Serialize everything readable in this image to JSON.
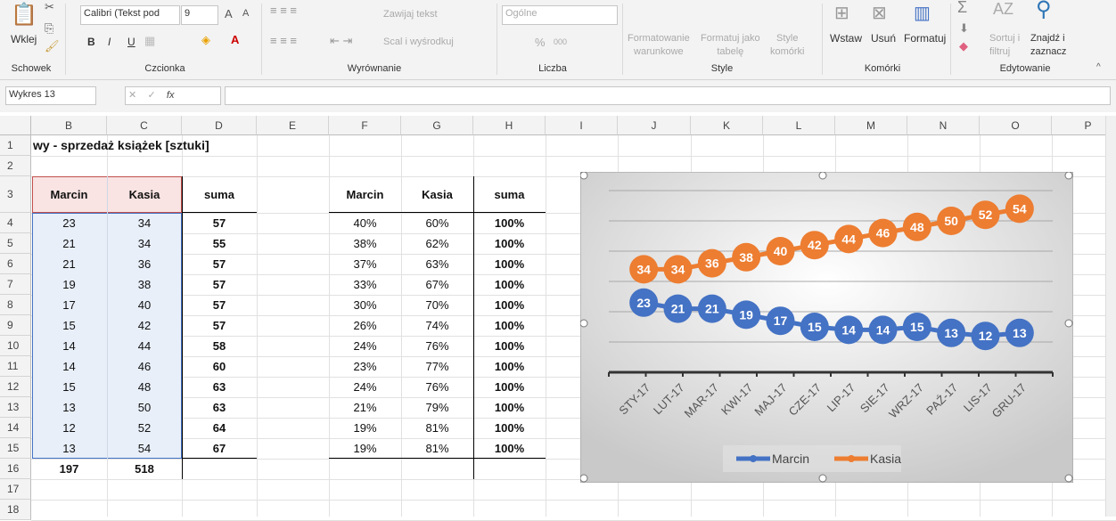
{
  "ribbon": {
    "clipboard": {
      "paste": "Wklej",
      "group": "Schowek"
    },
    "font": {
      "name": "Calibri (Tekst pod",
      "size": "9",
      "bold": "B",
      "italic": "I",
      "underline": "U",
      "group": "Czcionka"
    },
    "alignment": {
      "wrap": "Zawijaj tekst",
      "merge": "Scal i wyśrodkuj",
      "group": "Wyrównanie"
    },
    "number": {
      "format": "Ogólne",
      "percent": "%",
      "thousands": "000",
      "group": "Liczba"
    },
    "styles": {
      "conditional": [
        "Formatowanie",
        "warunkowe"
      ],
      "table": [
        "Formatuj jako",
        "tabelę"
      ],
      "cell": [
        "Style",
        "komórki"
      ],
      "group": "Style"
    },
    "cells": {
      "insert": "Wstaw",
      "delete": "Usuń",
      "format": "Formatuj",
      "group": "Komórki"
    },
    "editing": {
      "sort": [
        "Sortuj i",
        "filtruj"
      ],
      "find": [
        "Znajdź i",
        "zaznacz"
      ],
      "group": "Edytowanie"
    }
  },
  "formula_bar": {
    "name_box": "Wykres 13",
    "fx": "fx",
    "value": ""
  },
  "columns": [
    "B",
    "C",
    "D",
    "E",
    "F",
    "G",
    "H",
    "I",
    "J",
    "K",
    "L",
    "M",
    "N",
    "O",
    "P"
  ],
  "rows": [
    "1",
    "2",
    "3",
    "4",
    "5",
    "6",
    "7",
    "8",
    "9",
    "10",
    "11",
    "12",
    "13",
    "14",
    "15",
    "16",
    "17",
    "18"
  ],
  "sheet": {
    "title": "wy - sprzedaż książek [sztuki]",
    "headers": {
      "b": "Marcin",
      "c": "Kasia",
      "d": "suma",
      "f": "Marcin",
      "g": "Kasia",
      "h": "suma"
    },
    "data": [
      [
        "23",
        "34",
        "57",
        "40%",
        "60%",
        "100%"
      ],
      [
        "21",
        "34",
        "55",
        "38%",
        "62%",
        "100%"
      ],
      [
        "21",
        "36",
        "57",
        "37%",
        "63%",
        "100%"
      ],
      [
        "19",
        "38",
        "57",
        "33%",
        "67%",
        "100%"
      ],
      [
        "17",
        "40",
        "57",
        "30%",
        "70%",
        "100%"
      ],
      [
        "15",
        "42",
        "57",
        "26%",
        "74%",
        "100%"
      ],
      [
        "14",
        "44",
        "58",
        "24%",
        "76%",
        "100%"
      ],
      [
        "14",
        "46",
        "60",
        "23%",
        "77%",
        "100%"
      ],
      [
        "15",
        "48",
        "63",
        "24%",
        "76%",
        "100%"
      ],
      [
        "13",
        "50",
        "63",
        "21%",
        "79%",
        "100%"
      ],
      [
        "12",
        "52",
        "64",
        "19%",
        "81%",
        "100%"
      ],
      [
        "13",
        "54",
        "67",
        "19%",
        "81%",
        "100%"
      ]
    ],
    "totals": {
      "b": "197",
      "c": "518"
    }
  },
  "chart_data": {
    "type": "line",
    "categories": [
      "STY-17",
      "LUT-17",
      "MAR-17",
      "KWI-17",
      "MAJ-17",
      "CZE-17",
      "LIP-17",
      "SIE-17",
      "WRZ-17",
      "PAŹ-17",
      "LIS-17",
      "GRU-17"
    ],
    "series": [
      {
        "name": "Marcin",
        "values": [
          23,
          21,
          21,
          19,
          17,
          15,
          14,
          14,
          15,
          13,
          12,
          13
        ],
        "color": "#4472c4"
      },
      {
        "name": "Kasia",
        "values": [
          34,
          34,
          36,
          38,
          40,
          42,
          44,
          46,
          48,
          50,
          52,
          54
        ],
        "color": "#ed7d31"
      }
    ],
    "ylim": [
      0,
      60
    ],
    "grid": true,
    "legend": "bottom",
    "data_labels": true
  }
}
